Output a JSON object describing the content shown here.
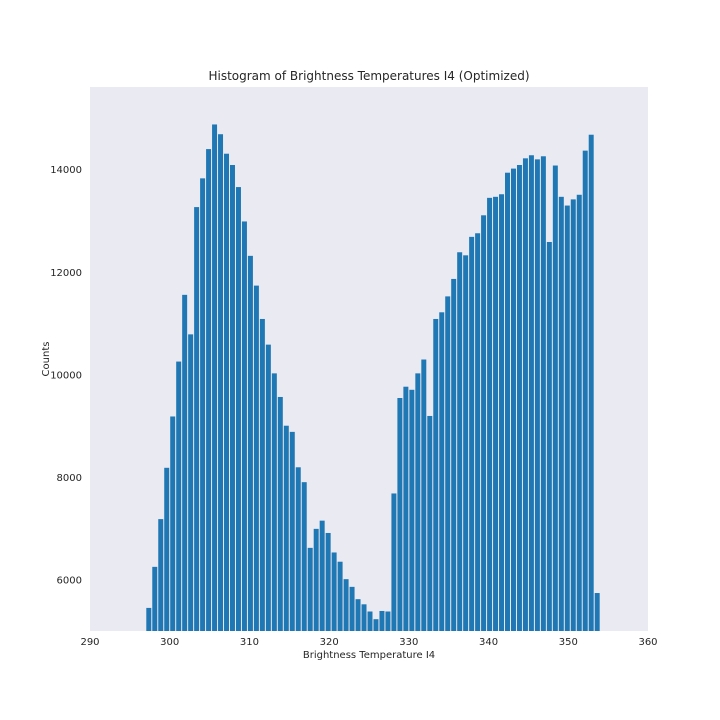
{
  "chart_data": {
    "type": "bar",
    "title": "Histogram of Brightness Temperatures I4 (Optimized)",
    "xlabel": "Brightness Temperature I4",
    "ylabel": "Counts",
    "xlim": [
      290,
      360
    ],
    "ylim": [
      5000,
      15600
    ],
    "xticks": [
      290,
      300,
      310,
      320,
      330,
      340,
      350,
      360
    ],
    "yticks": [
      6000,
      8000,
      10000,
      12000,
      14000
    ],
    "grid": false,
    "legend": "none",
    "bar_color": "#1f77b4",
    "plot_background": "#eaeaf2",
    "bin_start": 297.0,
    "bin_width": 0.75,
    "values": [
      5450,
      6250,
      7180,
      8180,
      9180,
      10250,
      11550,
      10780,
      13260,
      13820,
      14390,
      14870,
      14680,
      14300,
      14080,
      13650,
      12980,
      12310,
      11730,
      11080,
      10580,
      10020,
      9560,
      9000,
      8880,
      8190,
      7900,
      6620,
      6990,
      7150,
      6910,
      6530,
      6350,
      6010,
      5860,
      5620,
      5520,
      5380,
      5230,
      5390,
      5380,
      7680,
      9540,
      9760,
      9700,
      10020,
      10290,
      9190,
      11080,
      11210,
      11520,
      11860,
      12380,
      12320,
      12680,
      12750,
      13100,
      13440,
      13460,
      13510,
      13930,
      14010,
      14080,
      14210,
      14270,
      14190,
      14250,
      12580,
      14070,
      13460,
      13290,
      13410,
      13500,
      14360,
      14670,
      5740
    ]
  }
}
